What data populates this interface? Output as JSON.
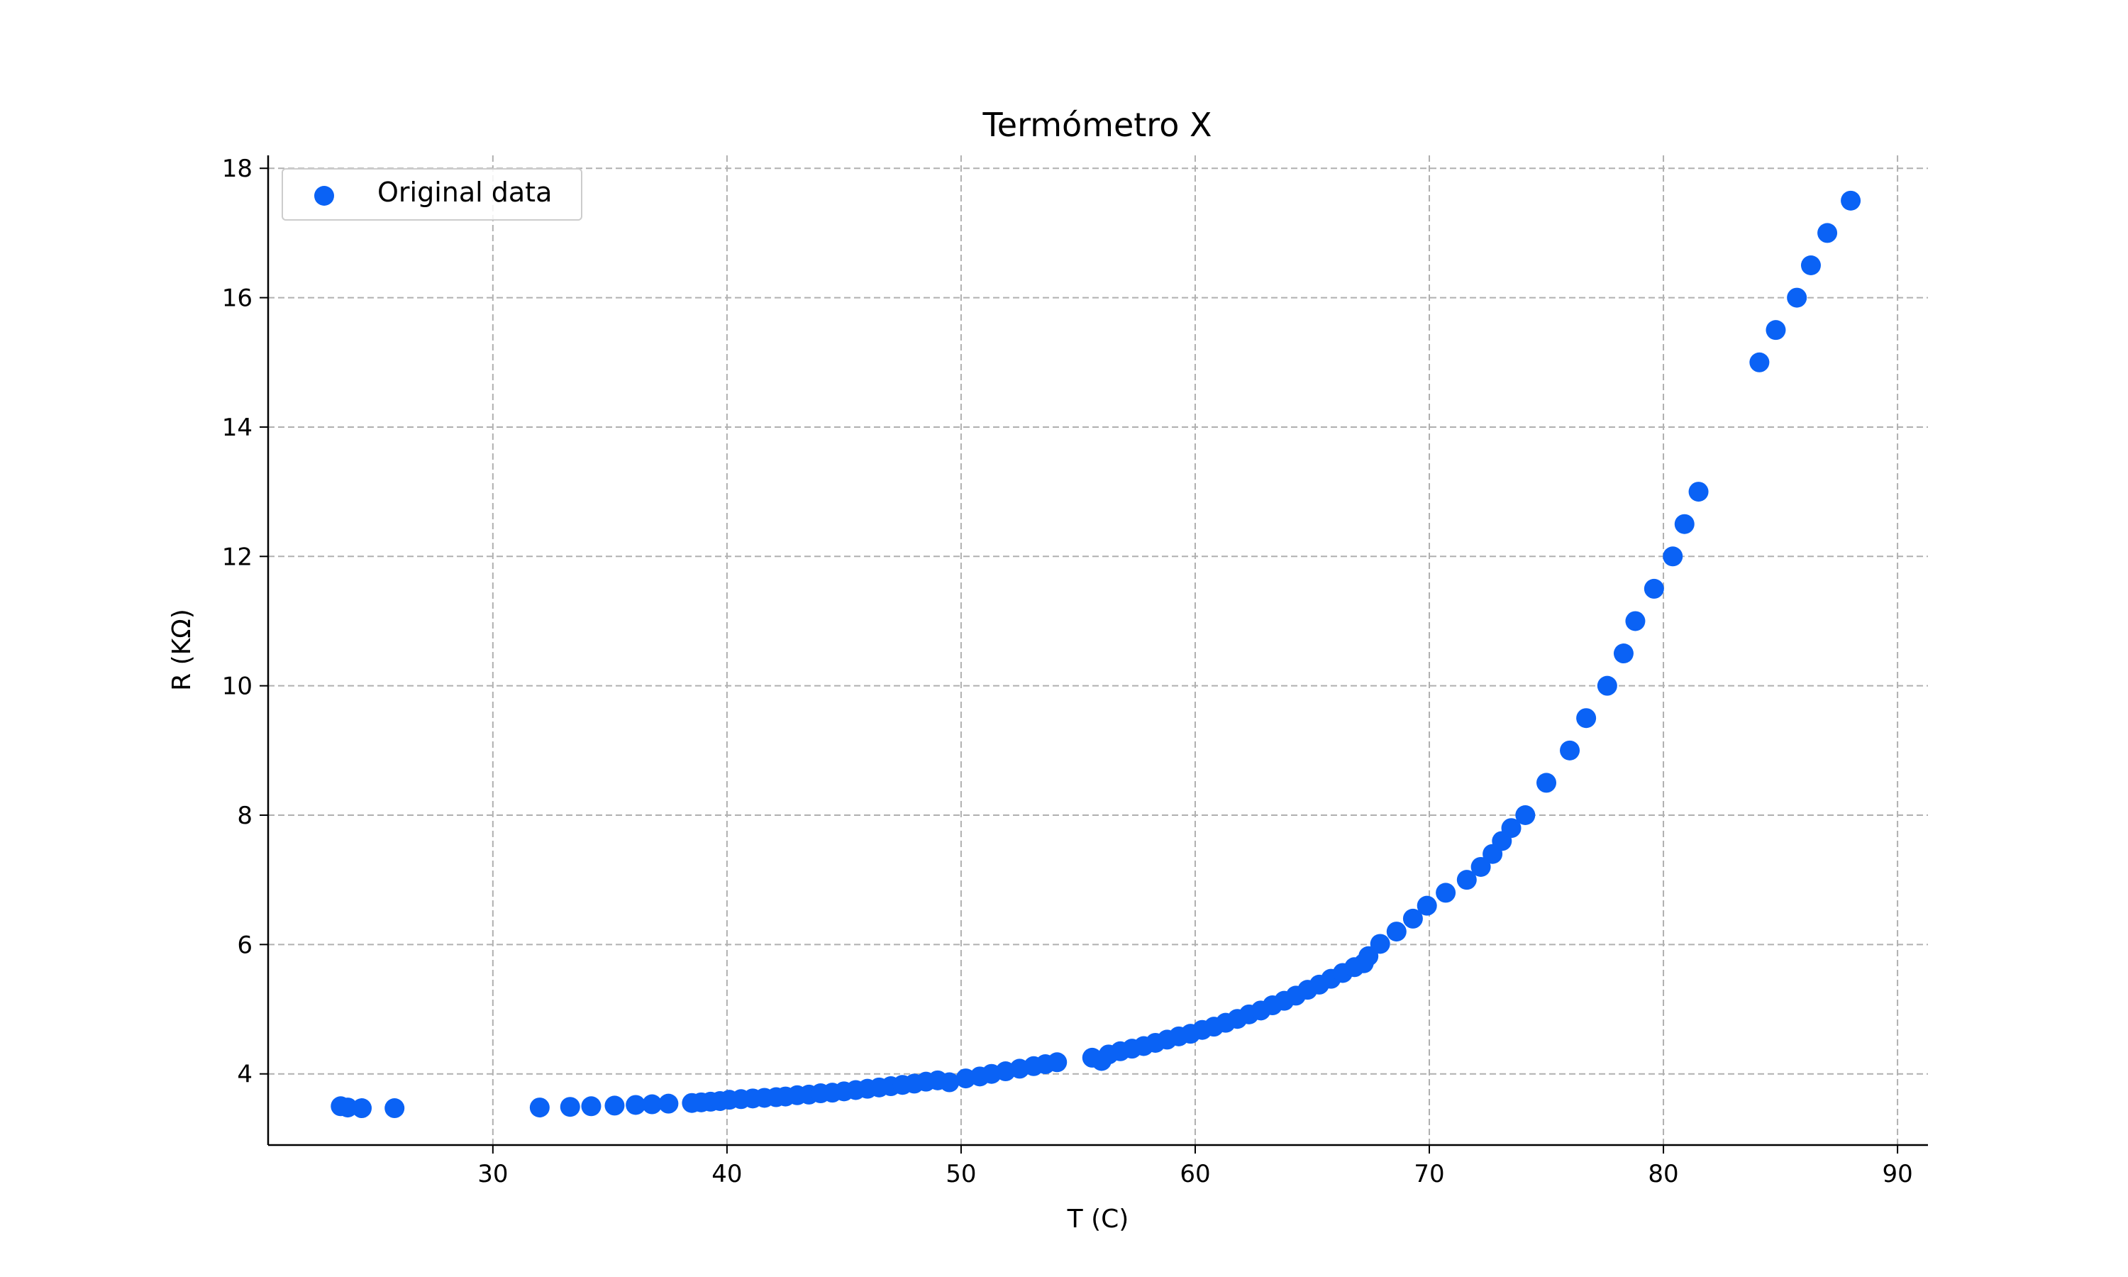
{
  "chart_data": {
    "type": "scatter",
    "title": "Termómetro X",
    "xlabel": "T (C)",
    "ylabel": "R (KΩ)",
    "xlim": [
      20.4,
      91.3
    ],
    "ylim": [
      2.9,
      18.2
    ],
    "xticks": [
      30,
      40,
      50,
      60,
      70,
      80,
      90
    ],
    "yticks": [
      4,
      6,
      8,
      10,
      12,
      14,
      16,
      18
    ],
    "grid": true,
    "legend_position": "top-left",
    "series": [
      {
        "name": "Original data",
        "color": "#0a62f5",
        "x": [
          23.5,
          23.8,
          24.4,
          25.8,
          32.0,
          33.3,
          34.2,
          35.2,
          36.1,
          36.8,
          37.5,
          38.5,
          38.9,
          39.3,
          39.7,
          40.1,
          40.6,
          41.1,
          41.6,
          42.1,
          42.5,
          43.0,
          43.5,
          44.0,
          44.5,
          45.0,
          45.5,
          46.0,
          46.5,
          47.0,
          47.5,
          48.0,
          48.5,
          49.0,
          49.5,
          50.2,
          50.8,
          51.3,
          51.9,
          52.5,
          53.1,
          53.6,
          54.1,
          55.6,
          56.0,
          56.3,
          56.8,
          57.3,
          57.8,
          58.3,
          58.8,
          59.3,
          59.8,
          60.3,
          60.8,
          61.3,
          61.8,
          62.3,
          62.8,
          63.3,
          63.8,
          64.3,
          64.8,
          65.3,
          65.8,
          66.3,
          66.8,
          67.2,
          67.4,
          67.9,
          68.6,
          69.3,
          69.9,
          70.7,
          71.6,
          72.2,
          72.7,
          73.1,
          73.5,
          74.1,
          75.0,
          76.0,
          76.7,
          77.6,
          78.3,
          78.8,
          79.6,
          80.4,
          80.9,
          81.5,
          84.1,
          84.8,
          85.7,
          86.3,
          87.0,
          88.0
        ],
        "y": [
          3.5,
          3.48,
          3.47,
          3.47,
          3.48,
          3.49,
          3.5,
          3.51,
          3.52,
          3.53,
          3.54,
          3.55,
          3.56,
          3.57,
          3.58,
          3.6,
          3.61,
          3.62,
          3.63,
          3.64,
          3.65,
          3.67,
          3.68,
          3.7,
          3.71,
          3.73,
          3.75,
          3.77,
          3.79,
          3.81,
          3.83,
          3.85,
          3.88,
          3.9,
          3.87,
          3.93,
          3.96,
          4.0,
          4.04,
          4.08,
          4.12,
          4.15,
          4.18,
          4.25,
          4.2,
          4.3,
          4.35,
          4.39,
          4.43,
          4.48,
          4.53,
          4.58,
          4.62,
          4.68,
          4.73,
          4.79,
          4.85,
          4.92,
          4.98,
          5.06,
          5.13,
          5.21,
          5.3,
          5.38,
          5.47,
          5.56,
          5.65,
          5.71,
          5.82,
          6.01,
          6.2,
          6.4,
          6.6,
          6.8,
          7.0,
          7.2,
          7.4,
          7.6,
          7.8,
          8.0,
          8.5,
          9.0,
          9.5,
          10.0,
          10.5,
          11.0,
          11.5,
          12.0,
          12.5,
          13.0,
          15.0,
          15.5,
          16.0,
          16.5,
          17.0,
          17.5
        ]
      }
    ]
  }
}
